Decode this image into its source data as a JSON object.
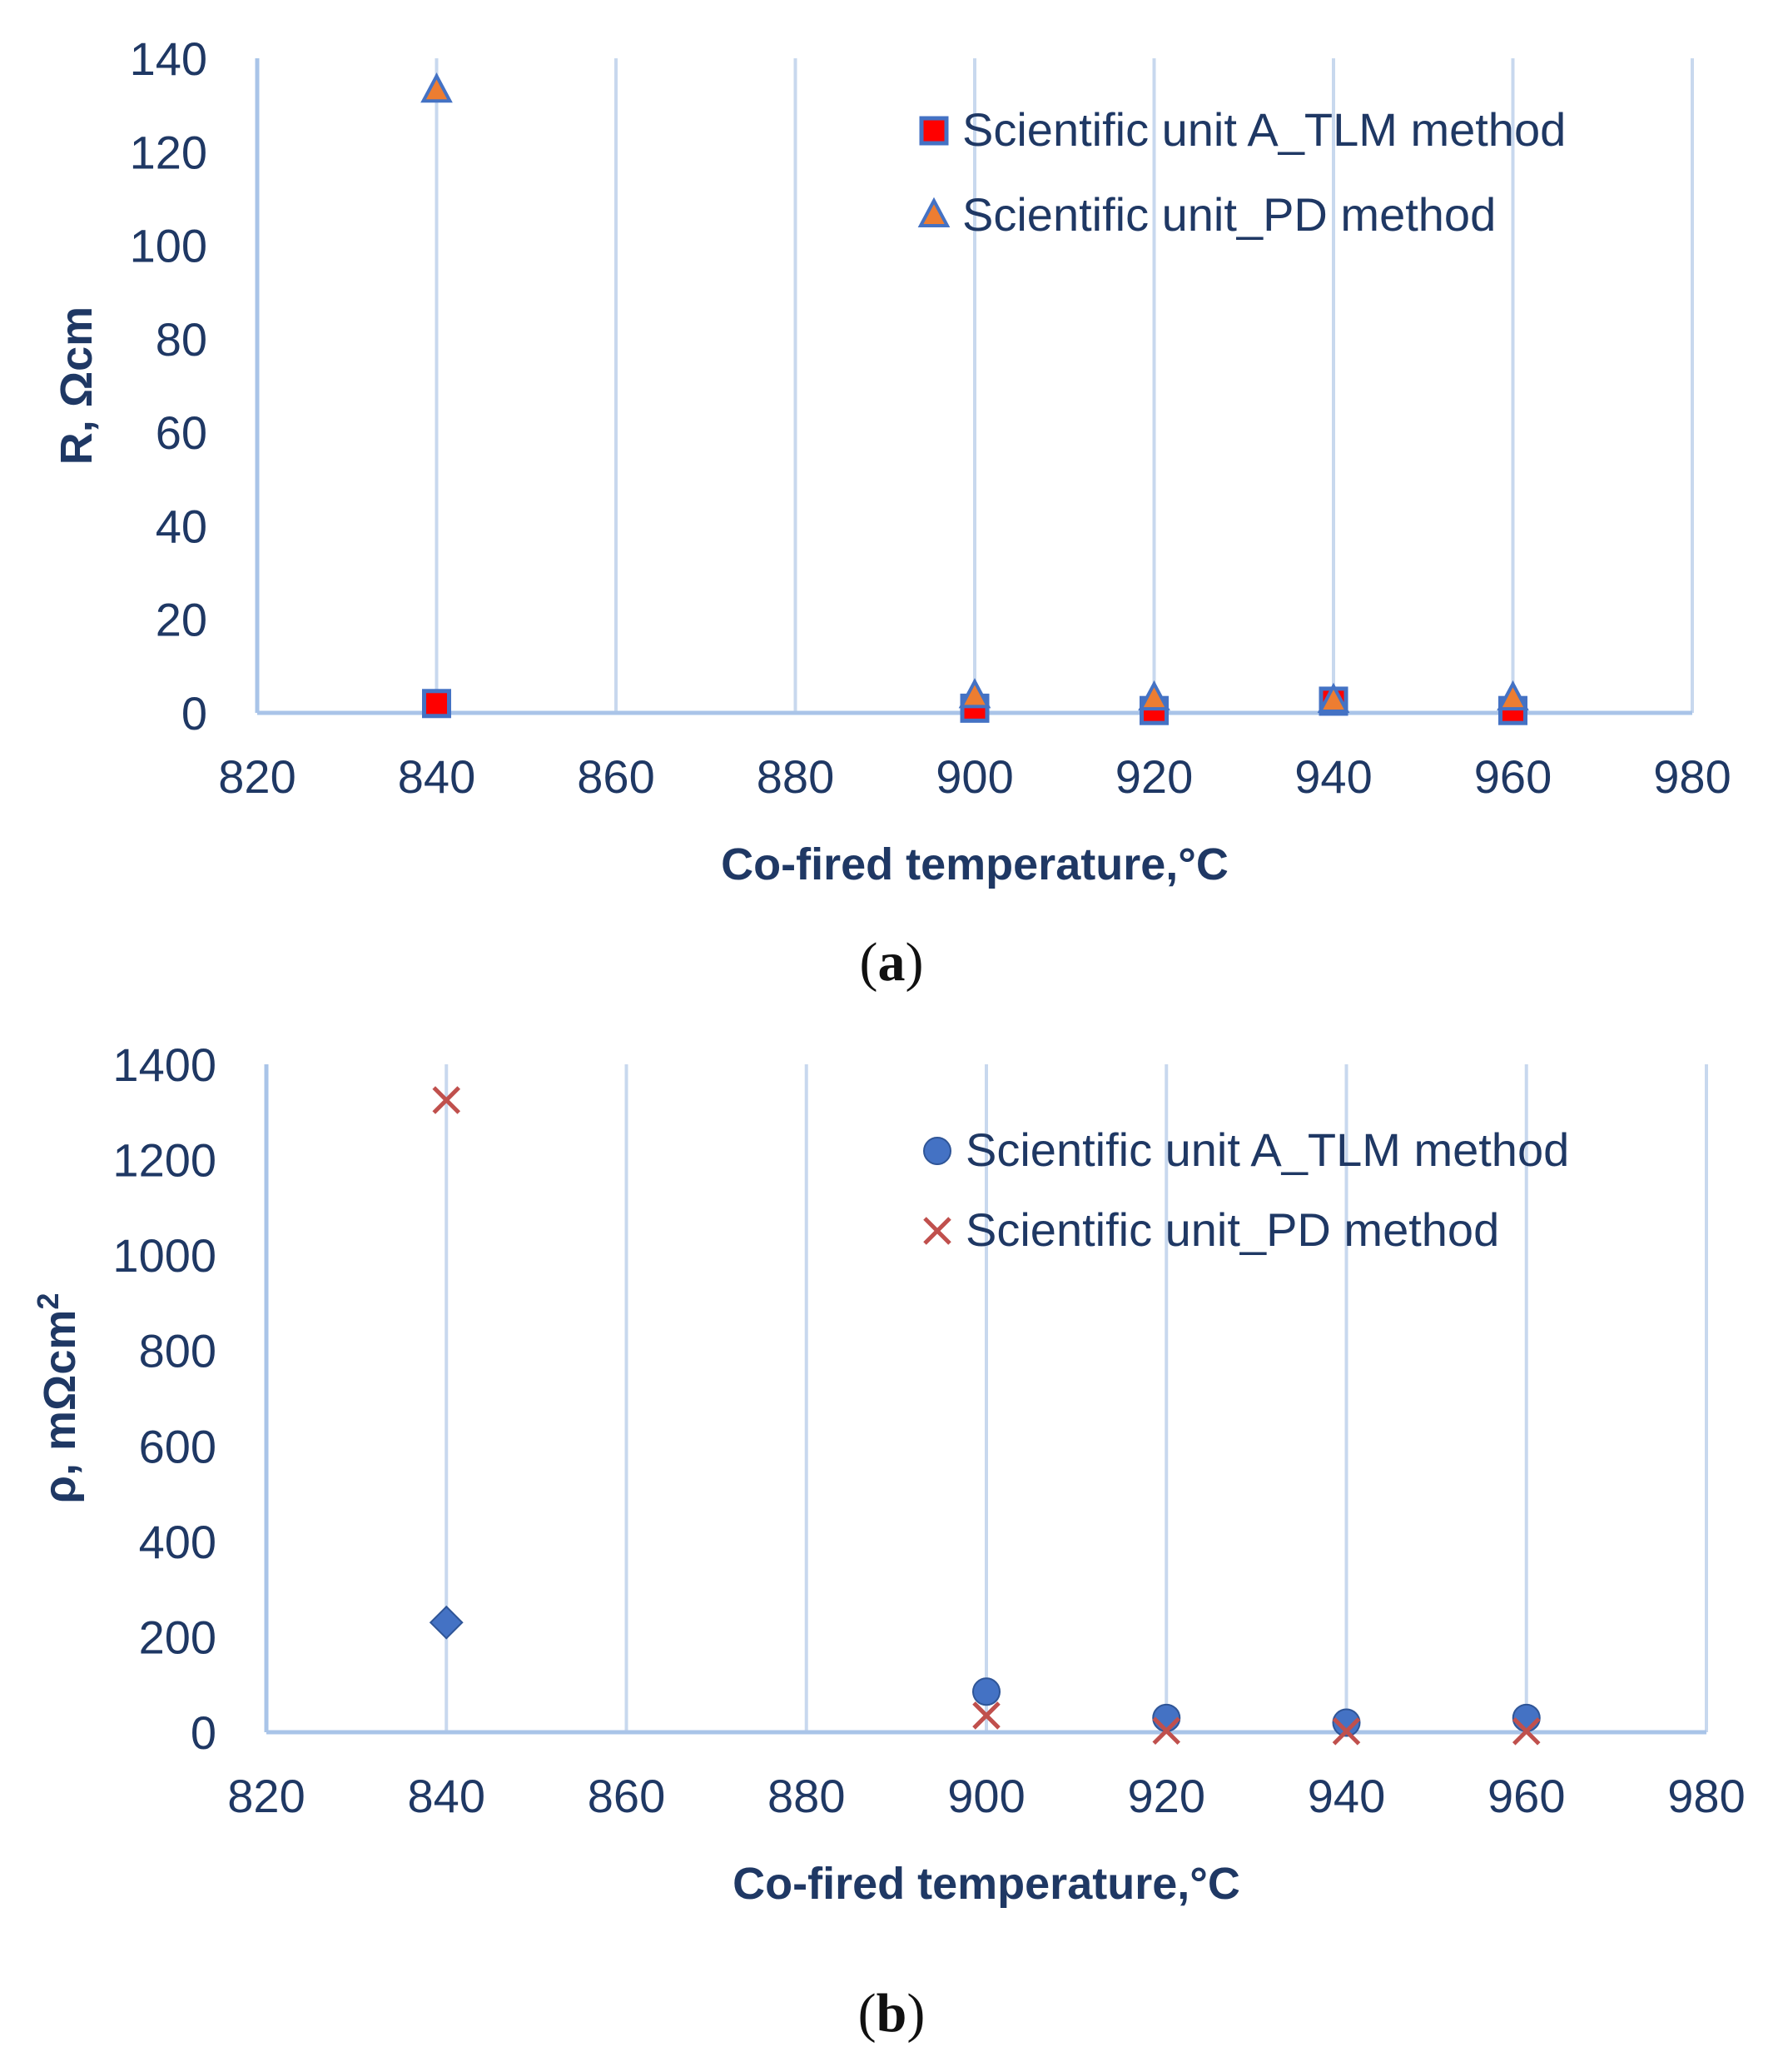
{
  "chart_data": [
    {
      "type": "scatter",
      "panel_label": "a",
      "xlabel": "Co-fired temperature,°C",
      "ylabel": "R, Ωcm",
      "xlim": [
        820,
        980
      ],
      "ylim": [
        0,
        140
      ],
      "xticks": [
        820,
        840,
        860,
        880,
        900,
        920,
        940,
        960,
        980
      ],
      "yticks": [
        0,
        20,
        40,
        60,
        80,
        100,
        120,
        140
      ],
      "grid": "vertical",
      "legend_position": "top-right",
      "series": [
        {
          "name": "Scientific unit A_TLM method",
          "marker": "square",
          "color": "#ff0000",
          "edge": "#4472c4",
          "points": [
            [
              840,
              2
            ],
            [
              900,
              1
            ],
            [
              920,
              0.5
            ],
            [
              940,
              2.5
            ],
            [
              960,
              0.5
            ]
          ]
        },
        {
          "name": "Scientific unit_PD method",
          "marker": "triangle",
          "color": "#ed7d31",
          "edge": "#4472c4",
          "points": [
            [
              840,
              133
            ],
            [
              900,
              3.5
            ],
            [
              920,
              3
            ],
            [
              940,
              2.5
            ],
            [
              960,
              3
            ]
          ]
        }
      ]
    },
    {
      "type": "scatter",
      "panel_label": "b",
      "xlabel": "Co-fired temperature,°C",
      "ylabel": "ρ, mΩcm",
      "ylabel_sup": "2",
      "xlim": [
        820,
        980
      ],
      "ylim": [
        0,
        1400
      ],
      "xticks": [
        820,
        840,
        860,
        880,
        900,
        920,
        940,
        960,
        980
      ],
      "yticks": [
        0,
        200,
        400,
        600,
        800,
        1000,
        1200,
        1400
      ],
      "grid": "vertical",
      "legend_position": "top-right",
      "series": [
        {
          "name": "Scientific unit A_TLM method",
          "marker": "circle",
          "color": "#4472c4",
          "points": [
            [
              840,
              230
            ],
            [
              900,
              85
            ],
            [
              920,
              30
            ],
            [
              940,
              20
            ],
            [
              960,
              30
            ]
          ]
        },
        {
          "name": "Scientific unit_PD method",
          "marker": "x",
          "color": "#c0504d",
          "points": [
            [
              840,
              1325
            ],
            [
              900,
              35
            ],
            [
              920,
              3
            ],
            [
              940,
              2
            ],
            [
              960,
              2
            ]
          ]
        }
      ]
    }
  ],
  "captions": {
    "a_open": "(",
    "a_letter": "a",
    "a_close": ")",
    "b_open": "(",
    "b_letter": "b",
    "b_close": ")"
  }
}
